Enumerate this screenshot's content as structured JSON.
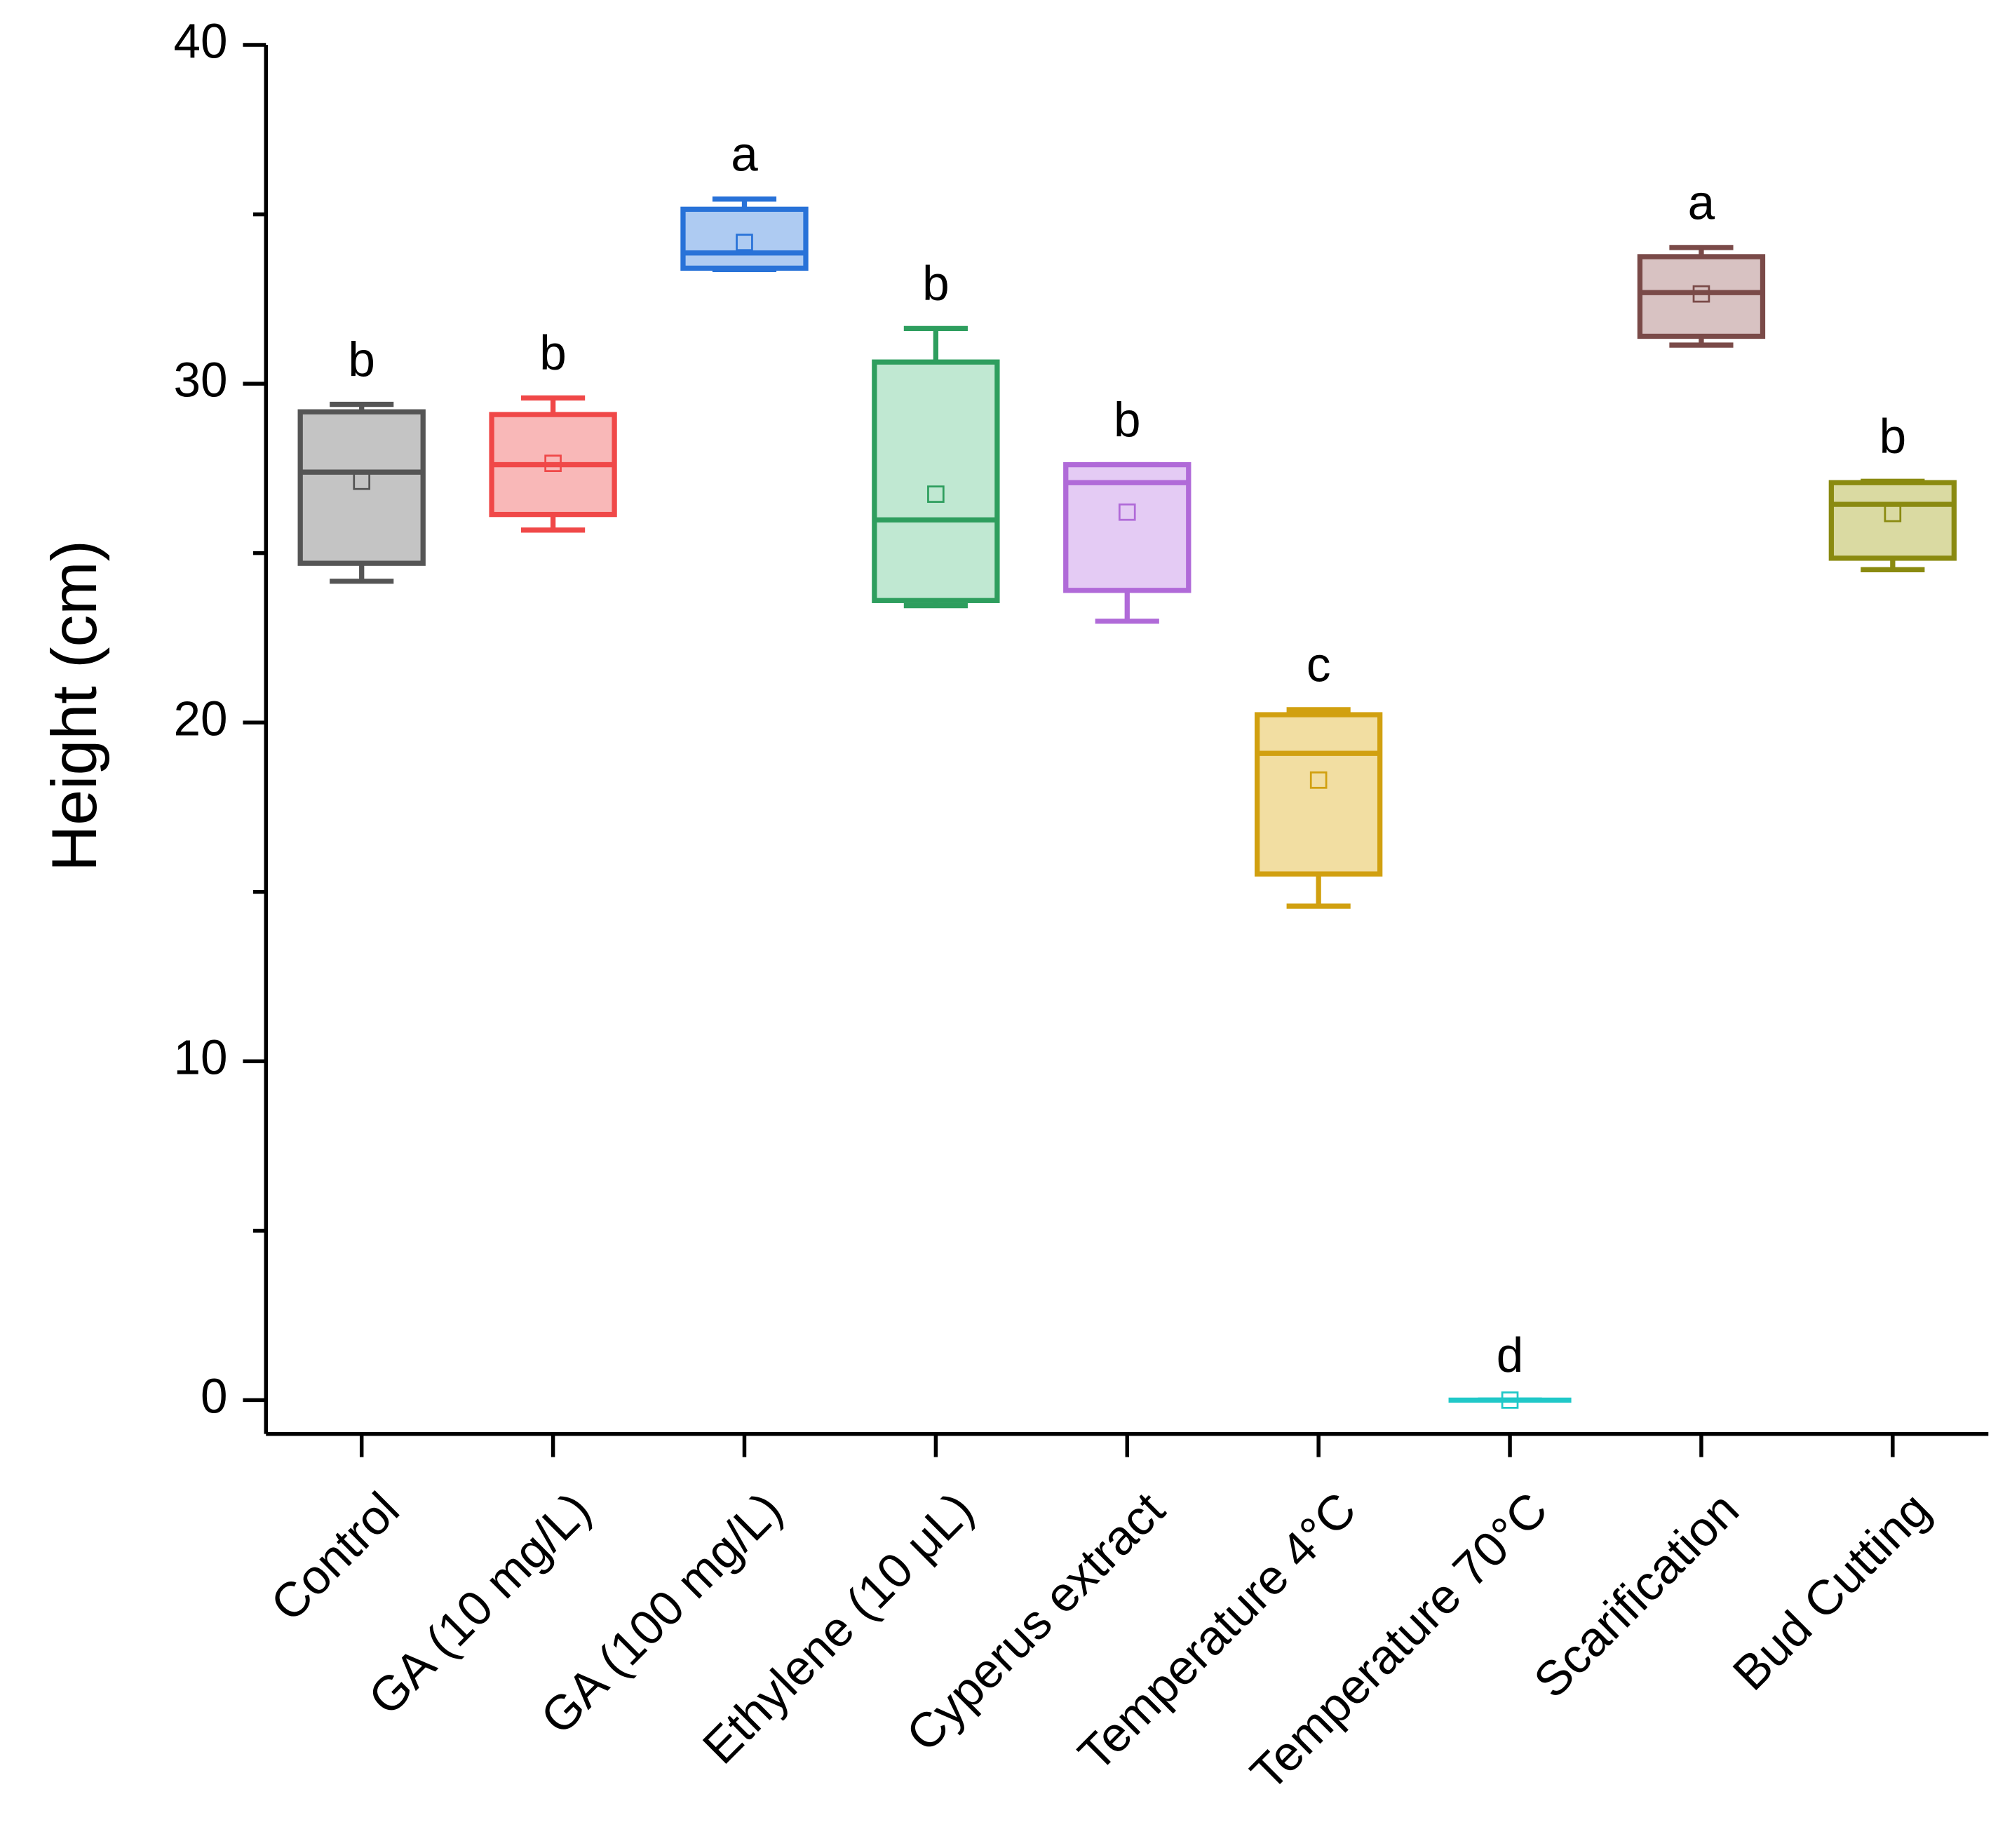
{
  "chart_data": {
    "type": "box",
    "y_label": "Height (cm)",
    "categories": [
      "Control",
      "GA (10 mg/L)",
      "GA (100 mg/L)",
      "Ethylene (10 μL)",
      "Cyperus extract",
      "Temperature 4°C",
      "Temperature 70°C",
      "Scarification",
      "Bud Cutting"
    ],
    "boxes": [
      {
        "whisker_low": 24.17,
        "q1": 24.7,
        "median": 27.39,
        "q3": 29.17,
        "whisker_high": 29.39,
        "mean": 27.12
      },
      {
        "whisker_low": 25.68,
        "q1": 26.14,
        "median": 27.61,
        "q3": 29.09,
        "whisker_high": 29.58,
        "mean": 27.65
      },
      {
        "whisker_low": 33.37,
        "q1": 33.41,
        "median": 33.86,
        "q3": 35.15,
        "whisker_high": 35.45,
        "mean": 34.17
      },
      {
        "whisker_low": 23.45,
        "q1": 23.6,
        "median": 25.98,
        "q3": 30.64,
        "whisker_high": 31.63,
        "mean": 26.74
      },
      {
        "whisker_low": 22.99,
        "q1": 23.9,
        "median": 27.08,
        "q3": 27.61,
        "whisker_high": 27.61,
        "mean": 26.21
      },
      {
        "whisker_low": 14.58,
        "q1": 15.53,
        "median": 19.09,
        "q3": 20.23,
        "whisker_high": 20.38,
        "mean": 18.3
      },
      {
        "whisker_low": 0,
        "q1": 0,
        "median": 0,
        "q3": 0,
        "whisker_high": 0,
        "mean": 0
      },
      {
        "whisker_low": 31.14,
        "q1": 31.4,
        "median": 32.69,
        "q3": 33.75,
        "whisker_high": 34.02,
        "mean": 32.65
      },
      {
        "whisker_low": 24.51,
        "q1": 24.85,
        "median": 26.44,
        "q3": 27.08,
        "whisker_high": 27.12,
        "mean": 26.17
      }
    ],
    "letters": [
      "b",
      "b",
      "a",
      "b",
      "b",
      "c",
      "d",
      "a",
      "b"
    ],
    "colors": [
      "#555555",
      "#f04848",
      "#2872d8",
      "#2e9e5e",
      "#b06ad8",
      "#d1a010",
      "#20c8c8",
      "#7a4a48",
      "#8a8a10"
    ],
    "fill_colors": [
      "#c4c4c4",
      "#f9b8b8",
      "#aecbf2",
      "#c0e8d2",
      "#e4cbf4",
      "#f2dea2",
      "#bff0f0",
      "#d8c2c2",
      "#dadaa2"
    ],
    "ylim": [
      -1,
      40
    ],
    "yticks": [
      0,
      10,
      20,
      30,
      40
    ],
    "yminor_ticks": [
      5,
      15,
      25,
      35
    ]
  }
}
